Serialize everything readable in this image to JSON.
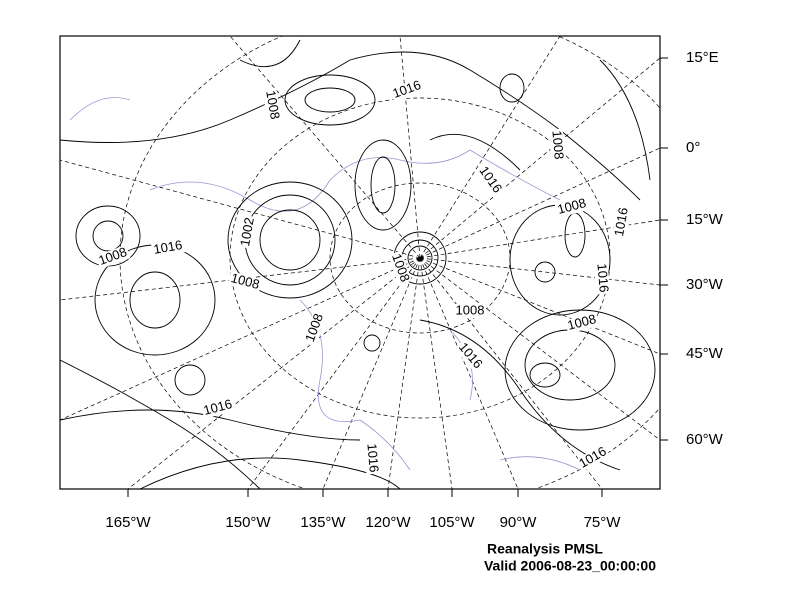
{
  "map": {
    "longitude_labels": [
      "165°W",
      "150°W",
      "135°W",
      "120°W",
      "105°W",
      "90°W",
      "75°W"
    ],
    "latitude_labels": [
      "15°E",
      "0°",
      "15°W",
      "30°W",
      "45°W",
      "60°W"
    ],
    "contour_labels": [
      "1008",
      "1016",
      "1008",
      "1016",
      "1008",
      "1016",
      "1002",
      "1008",
      "1016",
      "1008",
      "1016",
      "1008",
      "1008",
      "1008",
      "1008",
      "1016",
      "1016",
      "1016",
      "1016"
    ],
    "caption": {
      "title": "Reanalysis PMSL",
      "valid": "Valid 2006-08-23_00:00:00"
    }
  }
}
